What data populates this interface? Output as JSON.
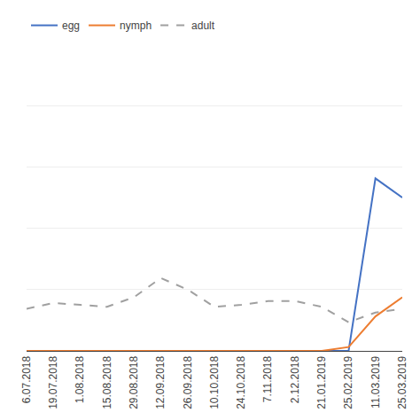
{
  "chart_data": {
    "type": "line",
    "categories": [
      "6.07.2018",
      "19.07.2018",
      "1.08.2018",
      "15.08.2018",
      "29.08.2018",
      "12.09.2018",
      "26.09.2018",
      "10.10.2018",
      "24.10.2018",
      "7.11.2018",
      "2.12.2018",
      "21.01.2019",
      "25.02.2019",
      "11.03.2019",
      "25.03.2019"
    ],
    "series": [
      {
        "name": "egg",
        "color": "#4472C4",
        "line_style": "solid",
        "values": [
          0,
          0,
          0,
          0,
          0,
          0,
          0,
          0,
          0,
          0,
          0,
          0,
          0,
          45,
          40
        ]
      },
      {
        "name": "nymph",
        "color": "#ED7D31",
        "line_style": "solid",
        "values": [
          0,
          0,
          0,
          0,
          0,
          0,
          0,
          0,
          0,
          0,
          0,
          0,
          1,
          9,
          14
        ]
      },
      {
        "name": "adult",
        "color": "#A0A0A0",
        "line_style": "dashed",
        "values": [
          11,
          12.5,
          12,
          11.5,
          14,
          19,
          16,
          11.5,
          12,
          13,
          13,
          11.5,
          7.5,
          10,
          11
        ]
      }
    ],
    "ylim": [
      0,
      80
    ],
    "yticks": [
      0,
      16,
      32,
      48,
      64,
      80
    ],
    "grid": true,
    "legend": "upper left",
    "tick_labels": "x"
  }
}
